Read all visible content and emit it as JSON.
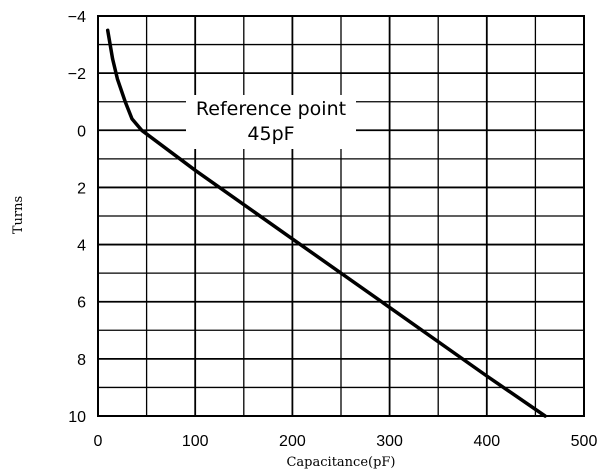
{
  "chart_data": {
    "type": "line",
    "xlabel": "Capacitance(pF)",
    "ylabel": "Turns",
    "xlim": [
      0,
      500
    ],
    "ylim": [
      -4,
      10
    ],
    "y_inverted": true,
    "grid": true,
    "x_ticks": [
      0,
      100,
      200,
      300,
      400,
      500
    ],
    "x_tick_labels": [
      "0",
      "100",
      "200",
      "300",
      "400",
      "500"
    ],
    "y_ticks": [
      -4,
      -2,
      0,
      2,
      4,
      6,
      8,
      10
    ],
    "y_tick_labels": [
      "−4",
      "−2",
      "0",
      "2",
      "4",
      "6",
      "8",
      "10"
    ],
    "x_minor_grid": [
      50,
      150,
      250,
      350,
      450
    ],
    "y_minor_grid": [
      -3,
      -1,
      1,
      3,
      5,
      7,
      9
    ],
    "series": [
      {
        "x": [
          10,
          15,
          20,
          28,
          35,
          45,
          100,
          200,
          300,
          400,
          460
        ],
        "y": [
          -3.5,
          -2.5,
          -1.8,
          -1.0,
          -0.4,
          0,
          1.4,
          3.8,
          6.2,
          8.6,
          10
        ]
      }
    ],
    "annotations": [
      {
        "lines": [
          "Reference point",
          "45pF"
        ],
        "x": 45,
        "y": 0
      }
    ]
  }
}
